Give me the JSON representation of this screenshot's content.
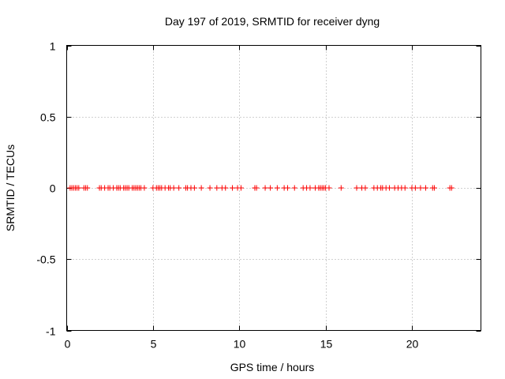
{
  "chart_data": {
    "type": "scatter",
    "title": "Day 197 of 2019, SRMTID for receiver dyng",
    "xlabel": "GPS time / hours",
    "ylabel": "SRMTID / TECUs",
    "xlim": [
      0,
      24
    ],
    "ylim": [
      -1,
      1
    ],
    "x_ticks": [
      0,
      5,
      10,
      15,
      20
    ],
    "x_tick_labels": [
      "0",
      "5",
      "10",
      "15",
      "20"
    ],
    "y_ticks": [
      -1,
      -0.5,
      0,
      0.5,
      1
    ],
    "y_tick_labels": [
      "-1",
      "-0.5",
      "0",
      "0.5",
      "1"
    ],
    "grid": true,
    "marker": "+",
    "series": [
      {
        "name": "SRMTID",
        "color": "#ff0000",
        "x": [
          0.2,
          0.3,
          0.4,
          0.5,
          0.6,
          0.7,
          1.0,
          1.1,
          1.2,
          1.9,
          2.0,
          2.2,
          2.4,
          2.5,
          2.7,
          2.9,
          3.0,
          3.1,
          3.3,
          3.4,
          3.5,
          3.6,
          3.8,
          3.9,
          4.0,
          4.1,
          4.2,
          4.3,
          4.5,
          5.0,
          5.2,
          5.3,
          5.4,
          5.5,
          5.7,
          5.9,
          6.0,
          6.2,
          6.5,
          6.9,
          7.0,
          7.2,
          7.4,
          7.8,
          8.3,
          8.7,
          9.0,
          9.2,
          9.6,
          9.9,
          10.1,
          10.9,
          11.0,
          11.5,
          11.8,
          12.2,
          12.6,
          12.8,
          13.2,
          13.7,
          13.9,
          14.1,
          14.4,
          14.6,
          14.7,
          14.8,
          14.9,
          15.0,
          15.2,
          15.9,
          16.8,
          17.1,
          17.3,
          17.8,
          18.0,
          18.2,
          18.3,
          18.5,
          18.7,
          19.0,
          19.2,
          19.4,
          19.6,
          20.0,
          20.2,
          20.5,
          20.8,
          21.2,
          21.3,
          22.2,
          22.3
        ],
        "y": [
          0,
          0,
          0,
          0,
          0,
          0,
          0,
          0,
          0,
          0,
          0,
          0,
          0,
          0,
          0,
          0,
          0,
          0,
          0,
          0,
          0,
          0,
          0,
          0,
          0,
          0,
          0,
          0,
          0,
          0,
          0,
          0,
          0,
          0,
          0,
          0,
          0,
          0,
          0,
          0,
          0,
          0,
          0,
          0,
          0,
          0,
          0,
          0,
          0,
          0,
          0,
          0,
          0,
          0,
          0,
          0,
          0,
          0,
          0,
          0,
          0,
          0,
          0,
          0,
          0,
          0,
          0,
          0,
          0,
          0,
          0,
          0,
          0,
          0,
          0,
          0,
          0,
          0,
          0,
          0,
          0,
          0,
          0,
          0,
          0,
          0,
          0,
          0,
          0,
          0,
          0
        ]
      }
    ]
  }
}
